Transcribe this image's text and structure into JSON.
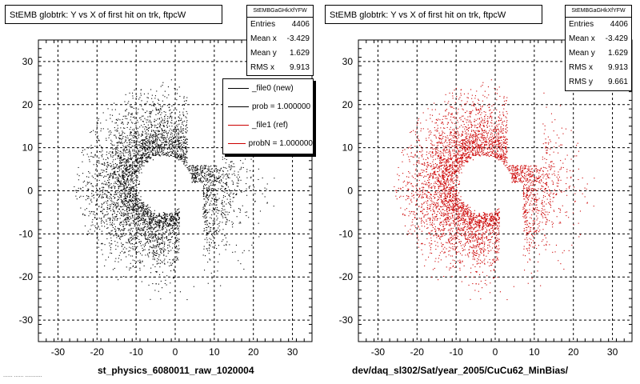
{
  "chart_data": [
    {
      "type": "scatter",
      "title": "StEMB globtrk: Y vs X of first hit on trk, ftpcW",
      "xlabel": "st_physics_6080011_raw_1020004",
      "ylabel": "",
      "xlim": [
        -35,
        35
      ],
      "ylim": [
        -35,
        35
      ],
      "xticks": [
        -30,
        -20,
        -10,
        0,
        10,
        20,
        30
      ],
      "yticks": [
        -30,
        -20,
        -10,
        0,
        10,
        20,
        30
      ],
      "grid": true,
      "marker_color": "#000000",
      "stats": {
        "name": "StEMBGaGHkXfYFW",
        "rows": [
          {
            "label": "Entries",
            "value": "4406"
          },
          {
            "label": "Mean x",
            "value": "-3.429"
          },
          {
            "label": "Mean y",
            "value": "1.629"
          },
          {
            "label": "RMS x",
            "value": "9.913"
          }
        ]
      },
      "legend": {
        "placement": "top-right",
        "entries": [
          {
            "label": "_file0 (new)",
            "color": "#000000"
          },
          {
            "label": "prob = 1.000000",
            "color": "#000000"
          },
          {
            "label": "_file1 (ref)",
            "color": "#cc0000"
          },
          {
            "label": "probN = 1.000000",
            "color": "#cc0000"
          }
        ]
      },
      "distribution": {
        "entries": 4406,
        "rings": [
          {
            "x_range": [
              -22,
              -6
            ],
            "y_range": [
              -20,
              22
            ],
            "density": "high"
          },
          {
            "x_range": [
              -14,
              2
            ],
            "y_range": [
              5,
              22
            ],
            "density": "high"
          },
          {
            "x_range": [
              8,
              24
            ],
            "y_range": [
              -18,
              6
            ],
            "density": "medium"
          }
        ],
        "inner_gap_radius": 7,
        "outer_radius": 24,
        "empty_region": {
          "x_range": [
            2,
            8
          ],
          "y_range": [
            -20,
            0
          ]
        }
      }
    },
    {
      "type": "scatter",
      "title": "StEMB globtrk: Y vs X of first hit on trk, ftpcW",
      "xlabel": "dev/daq_sl302/Sat/year_2005/CuCu62_MinBias/",
      "ylabel": "",
      "xlim": [
        -35,
        35
      ],
      "ylim": [
        -35,
        35
      ],
      "xticks": [
        -30,
        -20,
        -10,
        0,
        10,
        20,
        30
      ],
      "yticks": [
        -30,
        -20,
        -10,
        0,
        10,
        20,
        30
      ],
      "grid": true,
      "marker_color": "#cc0000",
      "stats": {
        "name": "StEMBGaGHkXfYFW",
        "rows": [
          {
            "label": "Entries",
            "value": "4406"
          },
          {
            "label": "Mean x",
            "value": "-3.429"
          },
          {
            "label": "Mean y",
            "value": "1.629"
          },
          {
            "label": "RMS x",
            "value": "9.913"
          },
          {
            "label": "RMS y",
            "value": "9.661"
          }
        ]
      },
      "distribution": {
        "entries": 4406,
        "inner_gap_radius": 7,
        "outer_radius": 24,
        "empty_region": {
          "x_range": [
            2,
            8
          ],
          "y_range": [
            -20,
            0
          ]
        }
      }
    }
  ],
  "footnote": "...... ...... ...........",
  "page": {
    "left_pad_caption": "st_physics_6080011_raw_1020004",
    "right_pad_caption": "dev/daq_sl302/Sat/year_2005/CuCu62_MinBias/"
  }
}
